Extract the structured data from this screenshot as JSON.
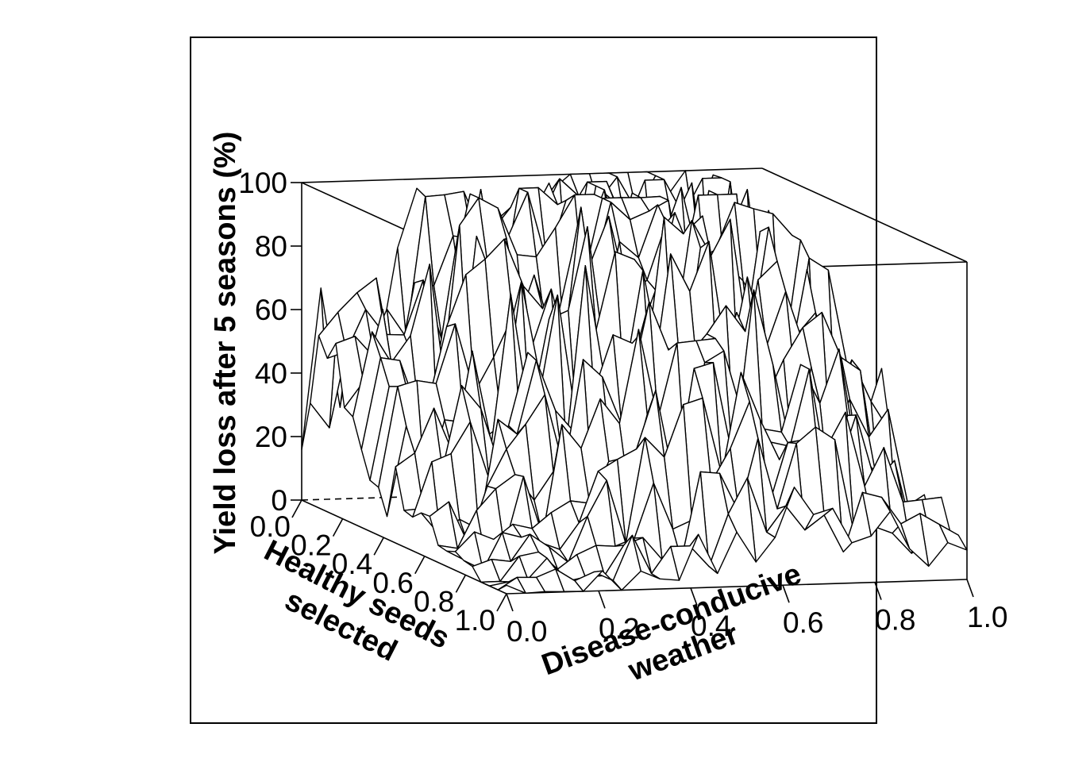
{
  "chart_data": {
    "type": "surface",
    "title": "",
    "zlabel": "Yield loss after 5 seasons (%)",
    "xlabel_lines": [
      "Healthy seeds",
      "selected"
    ],
    "ylabel_lines": [
      "Disease-conducive",
      "weather"
    ],
    "x_axis": {
      "label": "Healthy seeds selected",
      "range": [
        0,
        1
      ],
      "ticks": [
        "0.0",
        "0.2",
        "0.4",
        "0.6",
        "0.8",
        "1.0"
      ]
    },
    "y_axis": {
      "label": "Disease-conducive weather",
      "range": [
        0,
        1
      ],
      "ticks": [
        "0.0",
        "0.2",
        "0.4",
        "0.6",
        "0.8",
        "1.0"
      ]
    },
    "z_axis": {
      "label": "Yield loss after 5 seasons (%)",
      "range": [
        0,
        100
      ],
      "ticks": [
        "0",
        "20",
        "40",
        "60",
        "80",
        "100"
      ]
    },
    "grid": false,
    "description_of_surface": "Noisy surface: yield loss near 0 when healthy seeds selected is high and weather is low; rises toward 40-100% as weather increases and seed selection decreases.",
    "x_values": [
      0.0,
      0.2,
      0.4,
      0.6,
      0.8,
      1.0
    ],
    "y_values": [
      0.0,
      0.2,
      0.4,
      0.6,
      0.8,
      1.0
    ],
    "z_values": [
      [
        42,
        70,
        90,
        100,
        98,
        60
      ],
      [
        35,
        62,
        85,
        95,
        90,
        55
      ],
      [
        22,
        50,
        75,
        88,
        80,
        45
      ],
      [
        8,
        30,
        60,
        75,
        65,
        35
      ],
      [
        2,
        12,
        35,
        50,
        40,
        18
      ],
      [
        0,
        2,
        8,
        20,
        15,
        5
      ]
    ]
  }
}
